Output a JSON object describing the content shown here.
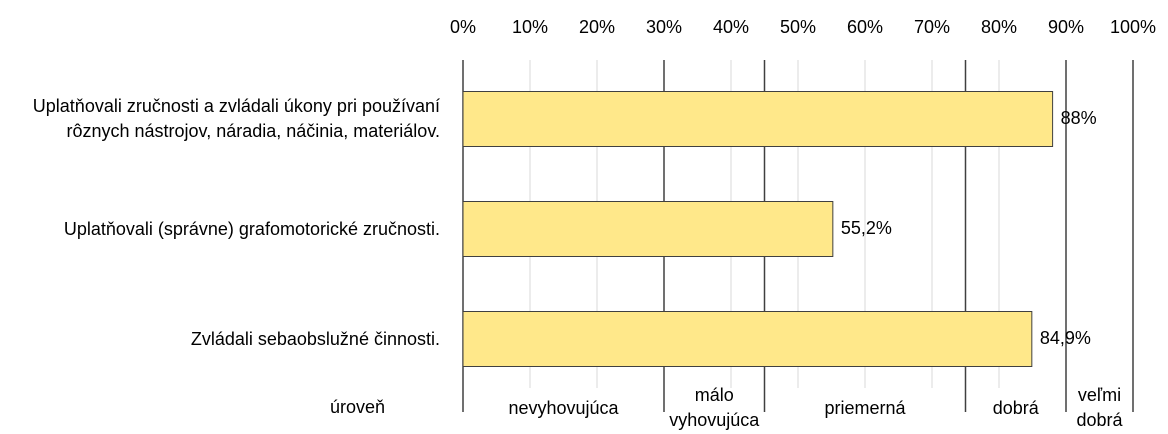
{
  "chart_data": {
    "type": "hbar",
    "categories": [
      "Uplatňovali zručnosti a zvládali úkony pri používaní rôznych nástrojov, náradia, náčinia, materiálov.",
      "Uplatňovali (správne) grafomotorické zručnosti.",
      "Zvládali sebaobslužné činnosti."
    ],
    "values": [
      88,
      55.2,
      84.9
    ],
    "value_labels": [
      "88%",
      "55,2%",
      "84,9%"
    ],
    "color": "#ffe88a",
    "xlim": [
      0,
      100
    ],
    "xticks": [
      {
        "value": 0,
        "label": "0%"
      },
      {
        "value": 10,
        "label": "10%"
      },
      {
        "value": 20,
        "label": "20%"
      },
      {
        "value": 30,
        "label": "30%"
      },
      {
        "value": 40,
        "label": "40%"
      },
      {
        "value": 50,
        "label": "50%"
      },
      {
        "value": 60,
        "label": "60%"
      },
      {
        "value": 70,
        "label": "70%"
      },
      {
        "value": 80,
        "label": "80%"
      },
      {
        "value": 90,
        "label": "90%"
      },
      {
        "value": 100,
        "label": "100%"
      }
    ],
    "grid": true,
    "level_title": "úroveň",
    "levels": [
      {
        "label": "nevyhovujúca",
        "from": 0,
        "to": 30
      },
      {
        "label": "málo vyhovujúca",
        "from": 30,
        "to": 45
      },
      {
        "label": "priemerná",
        "from": 45,
        "to": 75
      },
      {
        "label": "dobrá",
        "from": 75,
        "to": 90
      },
      {
        "label": "veľmi dobrá",
        "from": 90,
        "to": 100
      }
    ]
  }
}
